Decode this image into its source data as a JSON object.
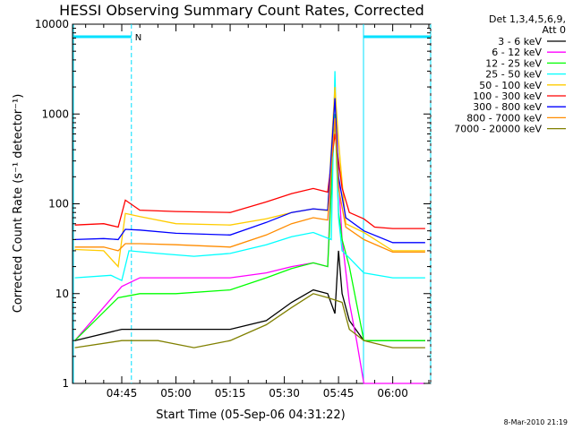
{
  "chart_data": {
    "type": "line",
    "title": "HESSI Observing Summary Count Rates, Corrected",
    "xlabel": "Start Time (05-Sep-06 04:31:22)",
    "ylabel": "Corrected Count Rate (s⁻¹ detector⁻¹)",
    "y_scale": "log",
    "ylim": [
      1,
      10000
    ],
    "xlim": [
      "04:31:22",
      "06:10:30"
    ],
    "x_ticks": [
      "04:45",
      "05:00",
      "05:15",
      "05:30",
      "05:45",
      "06:00"
    ],
    "y_ticks": [
      "1",
      "10",
      "100",
      "1000",
      "10000"
    ],
    "legend_header": [
      "Det 1,3,4,5,6,9,",
      "Att 0"
    ],
    "legend_position": "right",
    "footer_date": "8-Mar-2010 21:19",
    "night_marker": "N",
    "night_intervals": [
      [
        "04:31:22",
        "04:47:40"
      ],
      [
        "05:51:40",
        "06:10:30"
      ]
    ],
    "series": [
      {
        "name": "3 - 6 keV",
        "color": "#000000",
        "points": [
          [
            "04:32",
            3
          ],
          [
            "04:45",
            4
          ],
          [
            "05:00",
            4
          ],
          [
            "05:15",
            4
          ],
          [
            "05:25",
            5
          ],
          [
            "05:32",
            8
          ],
          [
            "05:38",
            11
          ],
          [
            "05:42",
            10
          ],
          [
            "05:44",
            6
          ],
          [
            "05:45",
            30
          ],
          [
            "05:46",
            10
          ],
          [
            "05:48",
            5
          ],
          [
            "05:52",
            3
          ],
          [
            "06:00",
            3
          ],
          [
            "06:09",
            3
          ]
        ]
      },
      {
        "name": "6 - 12 keV",
        "color": "#ff00ff",
        "points": [
          [
            "04:32",
            3
          ],
          [
            "04:45",
            12
          ],
          [
            "04:50",
            15
          ],
          [
            "05:00",
            15
          ],
          [
            "05:15",
            15
          ],
          [
            "05:25",
            17
          ],
          [
            "05:32",
            20
          ],
          [
            "05:38",
            22
          ],
          [
            "05:42",
            20
          ],
          [
            "05:44",
            2000
          ],
          [
            "05:45",
            200
          ],
          [
            "05:46",
            40
          ],
          [
            "05:48",
            8
          ],
          [
            "05:50",
            3
          ],
          [
            "05:52",
            1
          ],
          [
            "06:09",
            1
          ]
        ]
      },
      {
        "name": "12 - 25 keV",
        "color": "#00ff00",
        "points": [
          [
            "04:32",
            3
          ],
          [
            "04:44",
            9
          ],
          [
            "04:50",
            10
          ],
          [
            "05:00",
            10
          ],
          [
            "05:15",
            11
          ],
          [
            "05:25",
            15
          ],
          [
            "05:32",
            19
          ],
          [
            "05:38",
            22
          ],
          [
            "05:42",
            20
          ],
          [
            "05:44",
            1000
          ],
          [
            "05:45",
            80
          ],
          [
            "05:46",
            40
          ],
          [
            "05:48",
            20
          ],
          [
            "05:52",
            3
          ],
          [
            "06:00",
            3
          ],
          [
            "06:09",
            3
          ]
        ]
      },
      {
        "name": "25 - 50 keV",
        "color": "#00ffff",
        "points": [
          [
            "04:32",
            15
          ],
          [
            "04:42",
            16
          ],
          [
            "04:45",
            14
          ],
          [
            "04:47",
            30
          ],
          [
            "04:55",
            28
          ],
          [
            "05:05",
            26
          ],
          [
            "05:15",
            28
          ],
          [
            "05:25",
            35
          ],
          [
            "05:32",
            43
          ],
          [
            "05:38",
            48
          ],
          [
            "05:43",
            40
          ],
          [
            "05:44",
            3000
          ],
          [
            "05:45",
            70
          ],
          [
            "05:46",
            30
          ],
          [
            "05:48",
            25
          ],
          [
            "05:52",
            17
          ],
          [
            "06:00",
            15
          ],
          [
            "06:09",
            15
          ]
        ]
      },
      {
        "name": "50 - 100 keV",
        "color": "#ffcc00",
        "points": [
          [
            "04:32",
            31
          ],
          [
            "04:40",
            30
          ],
          [
            "04:44",
            20
          ],
          [
            "04:46",
            78
          ],
          [
            "04:50",
            72
          ],
          [
            "05:00",
            60
          ],
          [
            "05:15",
            58
          ],
          [
            "05:25",
            68
          ],
          [
            "05:32",
            80
          ],
          [
            "05:38",
            88
          ],
          [
            "05:42",
            84
          ],
          [
            "05:44",
            2000
          ],
          [
            "05:45",
            500
          ],
          [
            "05:47",
            60
          ],
          [
            "05:52",
            48
          ],
          [
            "06:00",
            30
          ],
          [
            "06:09",
            30
          ]
        ]
      },
      {
        "name": "100 - 300 keV",
        "color": "#ff0000",
        "points": [
          [
            "04:32",
            58
          ],
          [
            "04:40",
            60
          ],
          [
            "04:44",
            55
          ],
          [
            "04:46",
            110
          ],
          [
            "04:50",
            85
          ],
          [
            "05:00",
            82
          ],
          [
            "05:15",
            80
          ],
          [
            "05:25",
            105
          ],
          [
            "05:32",
            130
          ],
          [
            "05:38",
            148
          ],
          [
            "05:42",
            135
          ],
          [
            "05:44",
            600
          ],
          [
            "05:46",
            150
          ],
          [
            "05:48",
            80
          ],
          [
            "05:52",
            68
          ],
          [
            "05:55",
            55
          ],
          [
            "06:00",
            53
          ],
          [
            "06:09",
            53
          ]
        ]
      },
      {
        "name": "300 - 800 keV",
        "color": "#0000ff",
        "points": [
          [
            "04:32",
            40
          ],
          [
            "04:40",
            41
          ],
          [
            "04:44",
            40
          ],
          [
            "04:46",
            52
          ],
          [
            "04:50",
            51
          ],
          [
            "05:00",
            47
          ],
          [
            "05:15",
            45
          ],
          [
            "05:25",
            62
          ],
          [
            "05:32",
            80
          ],
          [
            "05:38",
            88
          ],
          [
            "05:42",
            85
          ],
          [
            "05:44",
            1500
          ],
          [
            "05:45",
            200
          ],
          [
            "05:47",
            70
          ],
          [
            "05:52",
            50
          ],
          [
            "06:00",
            37
          ],
          [
            "06:09",
            37
          ]
        ]
      },
      {
        "name": "800 - 7000 keV",
        "color": "#ff8c00",
        "points": [
          [
            "04:32",
            33
          ],
          [
            "04:40",
            33
          ],
          [
            "04:44",
            30
          ],
          [
            "04:46",
            36
          ],
          [
            "04:50",
            36
          ],
          [
            "05:00",
            35
          ],
          [
            "05:15",
            33
          ],
          [
            "05:25",
            45
          ],
          [
            "05:32",
            60
          ],
          [
            "05:38",
            70
          ],
          [
            "05:42",
            66
          ],
          [
            "05:44",
            900
          ],
          [
            "05:45",
            150
          ],
          [
            "05:47",
            55
          ],
          [
            "05:52",
            40
          ],
          [
            "06:00",
            29
          ],
          [
            "06:09",
            29
          ]
        ]
      },
      {
        "name": "7000 - 20000 keV",
        "color": "#808000",
        "points": [
          [
            "04:32",
            2.5
          ],
          [
            "04:45",
            3
          ],
          [
            "04:55",
            3
          ],
          [
            "05:05",
            2.5
          ],
          [
            "05:15",
            3
          ],
          [
            "05:25",
            4.5
          ],
          [
            "05:32",
            7
          ],
          [
            "05:38",
            10
          ],
          [
            "05:42",
            9
          ],
          [
            "05:46",
            8
          ],
          [
            "05:48",
            4
          ],
          [
            "05:52",
            3
          ],
          [
            "06:00",
            2.5
          ],
          [
            "06:09",
            2.5
          ]
        ]
      }
    ]
  }
}
